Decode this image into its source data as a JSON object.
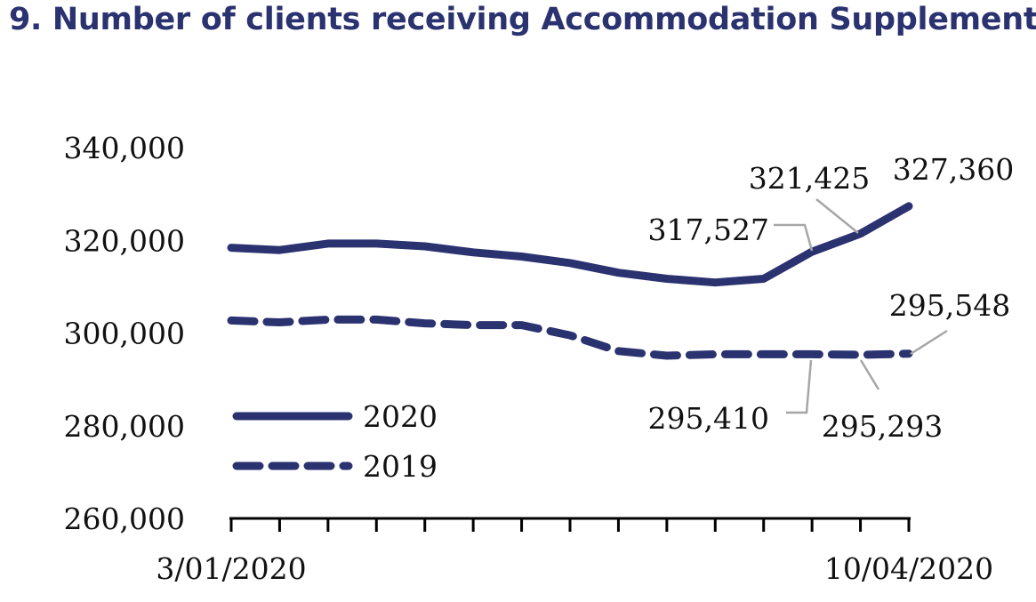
{
  "title": "9. Number of clients receiving Accommodation Supplement",
  "colors": {
    "series": "#2b3270",
    "leader": "#a6a6a6",
    "text": "#111111"
  },
  "chart_data": {
    "type": "line",
    "title": "9. Number of clients receiving Accommodation Supplement",
    "x_tick_labels": [
      "3/01/2020",
      "10/04/2020"
    ],
    "x_points": 15,
    "ylim": [
      260000,
      340000
    ],
    "yticks": [
      340000,
      320000,
      300000,
      280000,
      260000
    ],
    "ytick_labels": [
      "340,000",
      "320,000",
      "300,000",
      "280,000",
      "260,000"
    ],
    "grid": false,
    "legend_position": "lower-left",
    "series": [
      {
        "name": "2020",
        "style": "solid",
        "values": [
          318400,
          317900,
          319300,
          319300,
          318700,
          317400,
          316500,
          315100,
          313000,
          311700,
          310900,
          311700,
          317527,
          321425,
          327360
        ]
      },
      {
        "name": "2019",
        "style": "dashed",
        "values": [
          302700,
          302300,
          302900,
          302900,
          302100,
          301700,
          301700,
          299500,
          296100,
          295100,
          295410,
          295410,
          295410,
          295293,
          295548
        ]
      }
    ],
    "annotations": [
      {
        "text": "317,527",
        "series": 0,
        "index": 12
      },
      {
        "text": "321,425",
        "series": 0,
        "index": 13
      },
      {
        "text": "327,360",
        "series": 0,
        "index": 14
      },
      {
        "text": "295,410",
        "series": 1,
        "index": 12
      },
      {
        "text": "295,293",
        "series": 1,
        "index": 13
      },
      {
        "text": "295,548",
        "series": 1,
        "index": 14
      }
    ]
  }
}
